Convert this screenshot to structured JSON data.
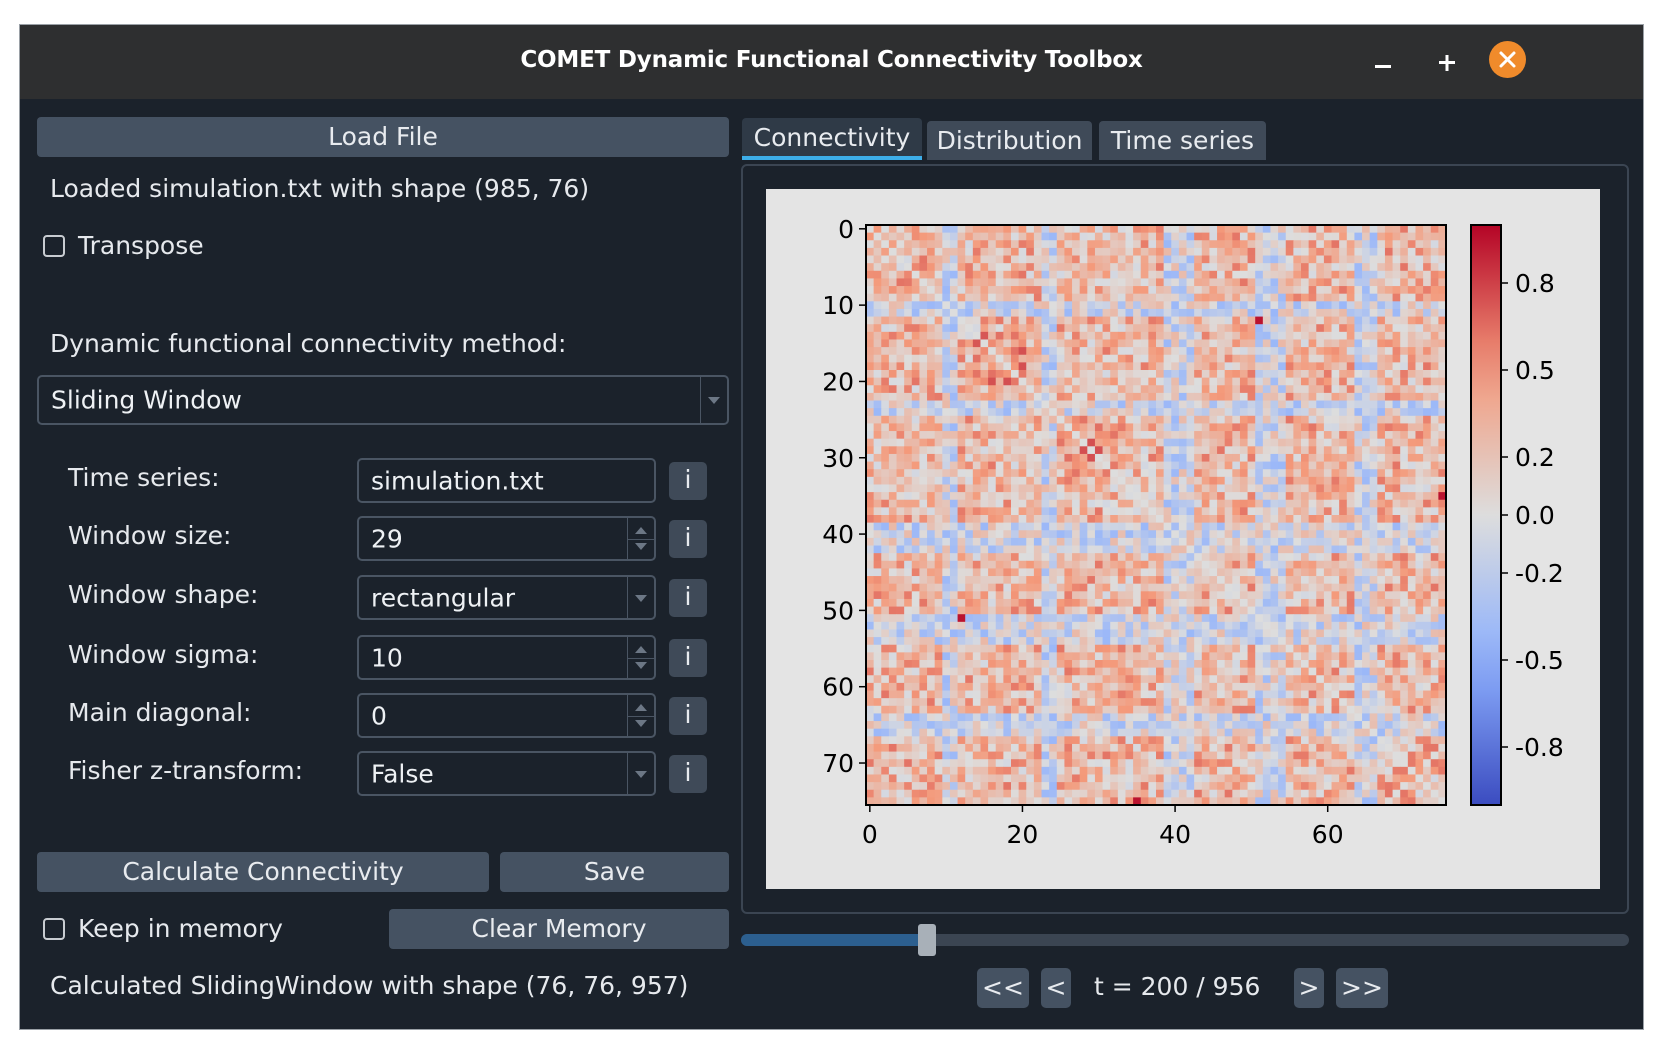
{
  "window": {
    "title": "COMET Dynamic Functional Connectivity Toolbox",
    "minimize_label": "–",
    "maximize_label": "+"
  },
  "left": {
    "load_file_label": "Load File",
    "loaded_status": "Loaded simulation.txt with shape (985, 76)",
    "transpose_label": "Transpose",
    "transpose_checked": false,
    "method_label": "Dynamic functional connectivity method:",
    "method_value": "Sliding Window",
    "params": [
      {
        "label": "Time series:",
        "value": "simulation.txt",
        "kind": "text"
      },
      {
        "label": "Window size:",
        "value": "29",
        "kind": "spin"
      },
      {
        "label": "Window shape:",
        "value": "rectangular",
        "kind": "combo"
      },
      {
        "label": "Window sigma:",
        "value": "10",
        "kind": "spin"
      },
      {
        "label": "Main diagonal:",
        "value": "0",
        "kind": "spin"
      },
      {
        "label": "Fisher z-transform:",
        "value": "False",
        "kind": "combo"
      }
    ],
    "info_label": "i",
    "calculate_label": "Calculate Connectivity",
    "save_label": "Save",
    "keep_memory_label": "Keep in memory",
    "keep_memory_checked": false,
    "clear_memory_label": "Clear Memory",
    "calc_status": "Calculated SlidingWindow with shape (76, 76, 957)"
  },
  "tabs": [
    {
      "label": "Connectivity",
      "active": true
    },
    {
      "label": "Distribution",
      "active": false
    },
    {
      "label": "Time series",
      "active": false
    }
  ],
  "navigation": {
    "first_label": "<<",
    "prev_label": "<",
    "time_label": "t = 200 / 956",
    "next_label": ">",
    "last_label": ">>",
    "slider_value": 200,
    "slider_max": 956
  },
  "chart_data": {
    "type": "heatmap",
    "title": "",
    "xlabel": "",
    "ylabel": "",
    "n": 76,
    "x_ticks": [
      0,
      20,
      40,
      60
    ],
    "y_ticks": [
      0,
      10,
      20,
      30,
      40,
      50,
      60,
      70
    ],
    "colorbar_ticks": [
      "0.8",
      "0.5",
      "0.2",
      "0.0",
      "-0.2",
      "-0.5",
      "-0.8"
    ],
    "colorbar_tick_values": [
      0.8,
      0.5,
      0.2,
      0.0,
      -0.2,
      -0.5,
      -0.8
    ],
    "vmin": -1,
    "vmax": 1,
    "colormap": "coolwarm",
    "values": "approximate 76x76 symmetric correlation matrix, mostly weakly positive (0 to 0.6), bands of near-zero/negative around nodes 39-42, 51-55, 10-12, 23-25, 64-67; strong positive blocks around nodes 14-20, 25-30 and 60-66; dark red peaks at (12,51),(35,75),(51,12),(75,35)"
  },
  "colors": {
    "window_bg": "#1b222b",
    "titlebar_bg": "#2e2f30",
    "button_bg": "#455262",
    "accent": "#3daee9",
    "close_button": "#f08b2b",
    "plot_bg": "#e4e4e4"
  }
}
